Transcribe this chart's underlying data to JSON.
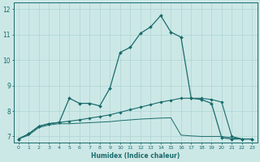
{
  "xlabel": "Humidex (Indice chaleur)",
  "bg_color": "#cce8e6",
  "grid_color": "#add4d2",
  "line_color": "#1a6b6b",
  "xlim": [
    -0.5,
    23.5
  ],
  "ylim": [
    6.75,
    12.25
  ],
  "xticks": [
    0,
    1,
    2,
    3,
    4,
    5,
    6,
    7,
    8,
    9,
    10,
    11,
    12,
    13,
    14,
    15,
    16,
    17,
    18,
    19,
    20,
    21,
    22,
    23
  ],
  "yticks": [
    7,
    8,
    9,
    10,
    11,
    12
  ],
  "line1_x": [
    0,
    1,
    2,
    3,
    4,
    5,
    6,
    7,
    8,
    9,
    10,
    11,
    12,
    13,
    14,
    15,
    16,
    17,
    18,
    19,
    20,
    21,
    22,
    23
  ],
  "line1_y": [
    6.9,
    7.1,
    7.4,
    7.5,
    7.55,
    8.5,
    8.3,
    8.3,
    8.2,
    8.9,
    10.3,
    10.5,
    11.05,
    11.3,
    11.75,
    11.1,
    10.9,
    8.5,
    8.45,
    8.3,
    6.95,
    6.9,
    6.9,
    6.9
  ],
  "line2_x": [
    0,
    1,
    2,
    3,
    4,
    5,
    6,
    7,
    8,
    9,
    10,
    11,
    12,
    13,
    14,
    15,
    16,
    17,
    18,
    19,
    20,
    21,
    22,
    23
  ],
  "line2_y": [
    6.9,
    7.1,
    7.4,
    7.5,
    7.55,
    7.6,
    7.65,
    7.72,
    7.78,
    7.85,
    7.95,
    8.05,
    8.15,
    8.25,
    8.35,
    8.42,
    8.5,
    8.5,
    8.5,
    8.45,
    8.35,
    7.0,
    6.9,
    6.9
  ],
  "line3_x": [
    0,
    1,
    2,
    3,
    4,
    5,
    6,
    7,
    8,
    9,
    10,
    11,
    12,
    13,
    14,
    15,
    16,
    17,
    18,
    19,
    20,
    21,
    22,
    23
  ],
  "line3_y": [
    6.9,
    7.05,
    7.35,
    7.45,
    7.5,
    7.5,
    7.52,
    7.54,
    7.56,
    7.58,
    7.62,
    7.65,
    7.68,
    7.7,
    7.72,
    7.73,
    7.05,
    7.02,
    7.0,
    7.0,
    7.0,
    6.95,
    6.9,
    6.9
  ]
}
